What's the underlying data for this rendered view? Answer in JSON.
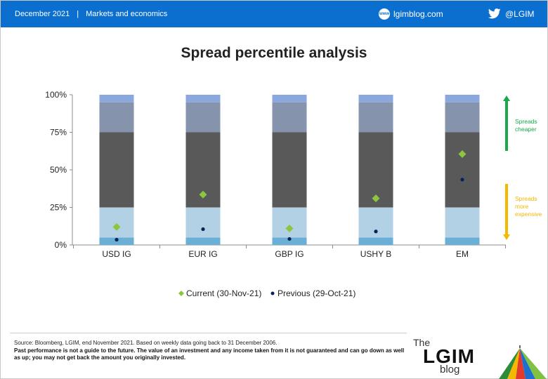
{
  "header": {
    "date": "December 2021",
    "section": "Markets and economics",
    "site": "lgimblog.com",
    "twitter": "@LGIM",
    "bg_color": "#0b6fd0"
  },
  "title": "Spread percentile analysis",
  "chart_data": {
    "type": "bar",
    "stacked": true,
    "categories": [
      "USD IG",
      "EUR IG",
      "GBP IG",
      "USHY B",
      "EM"
    ],
    "ylim": [
      0,
      1
    ],
    "yticks": [
      {
        "value": 0,
        "label": "0%"
      },
      {
        "value": 0.25,
        "label": "25%"
      },
      {
        "value": 0.5,
        "label": "50%"
      },
      {
        "value": 0.75,
        "label": "75%"
      },
      {
        "value": 1,
        "label": "100%"
      }
    ],
    "bands": [
      {
        "from": 0,
        "to": 0.05,
        "color": "#6aafd6"
      },
      {
        "from": 0.05,
        "to": 0.25,
        "color": "#b3d1e4"
      },
      {
        "from": 0.25,
        "to": 0.75,
        "color": "#595959"
      },
      {
        "from": 0.75,
        "to": 0.95,
        "color": "#8693ad"
      },
      {
        "from": 0.95,
        "to": 1,
        "color": "#8aa8de"
      }
    ],
    "series": [
      {
        "name": "Current (30-Nov-21)",
        "marker": "diamond",
        "color": "#8cc63f",
        "values": [
          0.12,
          0.335,
          0.11,
          0.31,
          0.605
        ]
      },
      {
        "name": "Previous (29-Oct-21)",
        "marker": "circle",
        "color": "#0a1f5c",
        "values": [
          0.035,
          0.105,
          0.04,
          0.09,
          0.435
        ]
      }
    ],
    "annotations": [
      {
        "text_lines": [
          "Spreads",
          "cheaper"
        ],
        "color": "#1aa84a",
        "direction": "up"
      },
      {
        "text_lines": [
          "Spreads",
          "more",
          "expensive"
        ],
        "color": "#f5b800",
        "direction": "down"
      }
    ],
    "legend_position": "bottom",
    "grid": false
  },
  "footer": {
    "source": "Source: Bloomberg, LGIM, end November 2021. Based on weekly data going back to 31 December 2006.",
    "disclaimer": "Past performance is not a guide to the future. The value of an investment and any income taken from it is not guaranteed and can go down as well as up; you may not get back the amount you originally invested."
  },
  "brand": {
    "the": "The",
    "name": "LGIM",
    "blog": "blog"
  }
}
